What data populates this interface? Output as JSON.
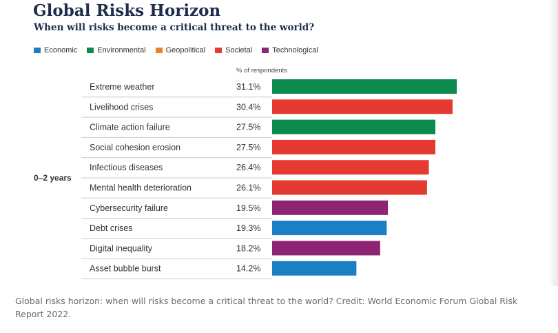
{
  "title": "Global Risks Horizon",
  "subtitle": "When will risks become a critical threat to the world?",
  "legend": [
    {
      "label": "Economic",
      "color": "#1b7fc3"
    },
    {
      "label": "Environmental",
      "color": "#0d8a4d"
    },
    {
      "label": "Geopolitical",
      "color": "#e8812a"
    },
    {
      "label": "Societal",
      "color": "#e53a2f"
    },
    {
      "label": "Technological",
      "color": "#8e2574"
    }
  ],
  "chart_data": {
    "type": "bar",
    "orientation": "horizontal",
    "value_header": "% of respondents",
    "group_label": "0–2 years",
    "categories": [
      "Extreme weather",
      "Livelihood crises",
      "Climate action failure",
      "Social cohesion erosion",
      "Infectious diseases",
      "Mental health deterioration",
      "Cybersecurity failure",
      "Debt crises",
      "Digital inequality",
      "Asset bubble burst"
    ],
    "values": [
      31.1,
      30.4,
      27.5,
      27.5,
      26.4,
      26.1,
      19.5,
      19.3,
      18.2,
      14.2
    ],
    "value_labels": [
      "31.1%",
      "30.4%",
      "27.5%",
      "27.5%",
      "26.4%",
      "26.1%",
      "19.5%",
      "19.3%",
      "18.2%",
      "14.2%"
    ],
    "bar_categories": [
      "Environmental",
      "Societal",
      "Environmental",
      "Societal",
      "Societal",
      "Societal",
      "Technological",
      "Economic",
      "Technological",
      "Economic"
    ],
    "xlim": [
      0,
      31.1
    ],
    "grid": false
  },
  "caption": "Global risks horizon: when will risks become a critical threat to the world? Credit: World Economic Forum Global Risk Report 2022."
}
